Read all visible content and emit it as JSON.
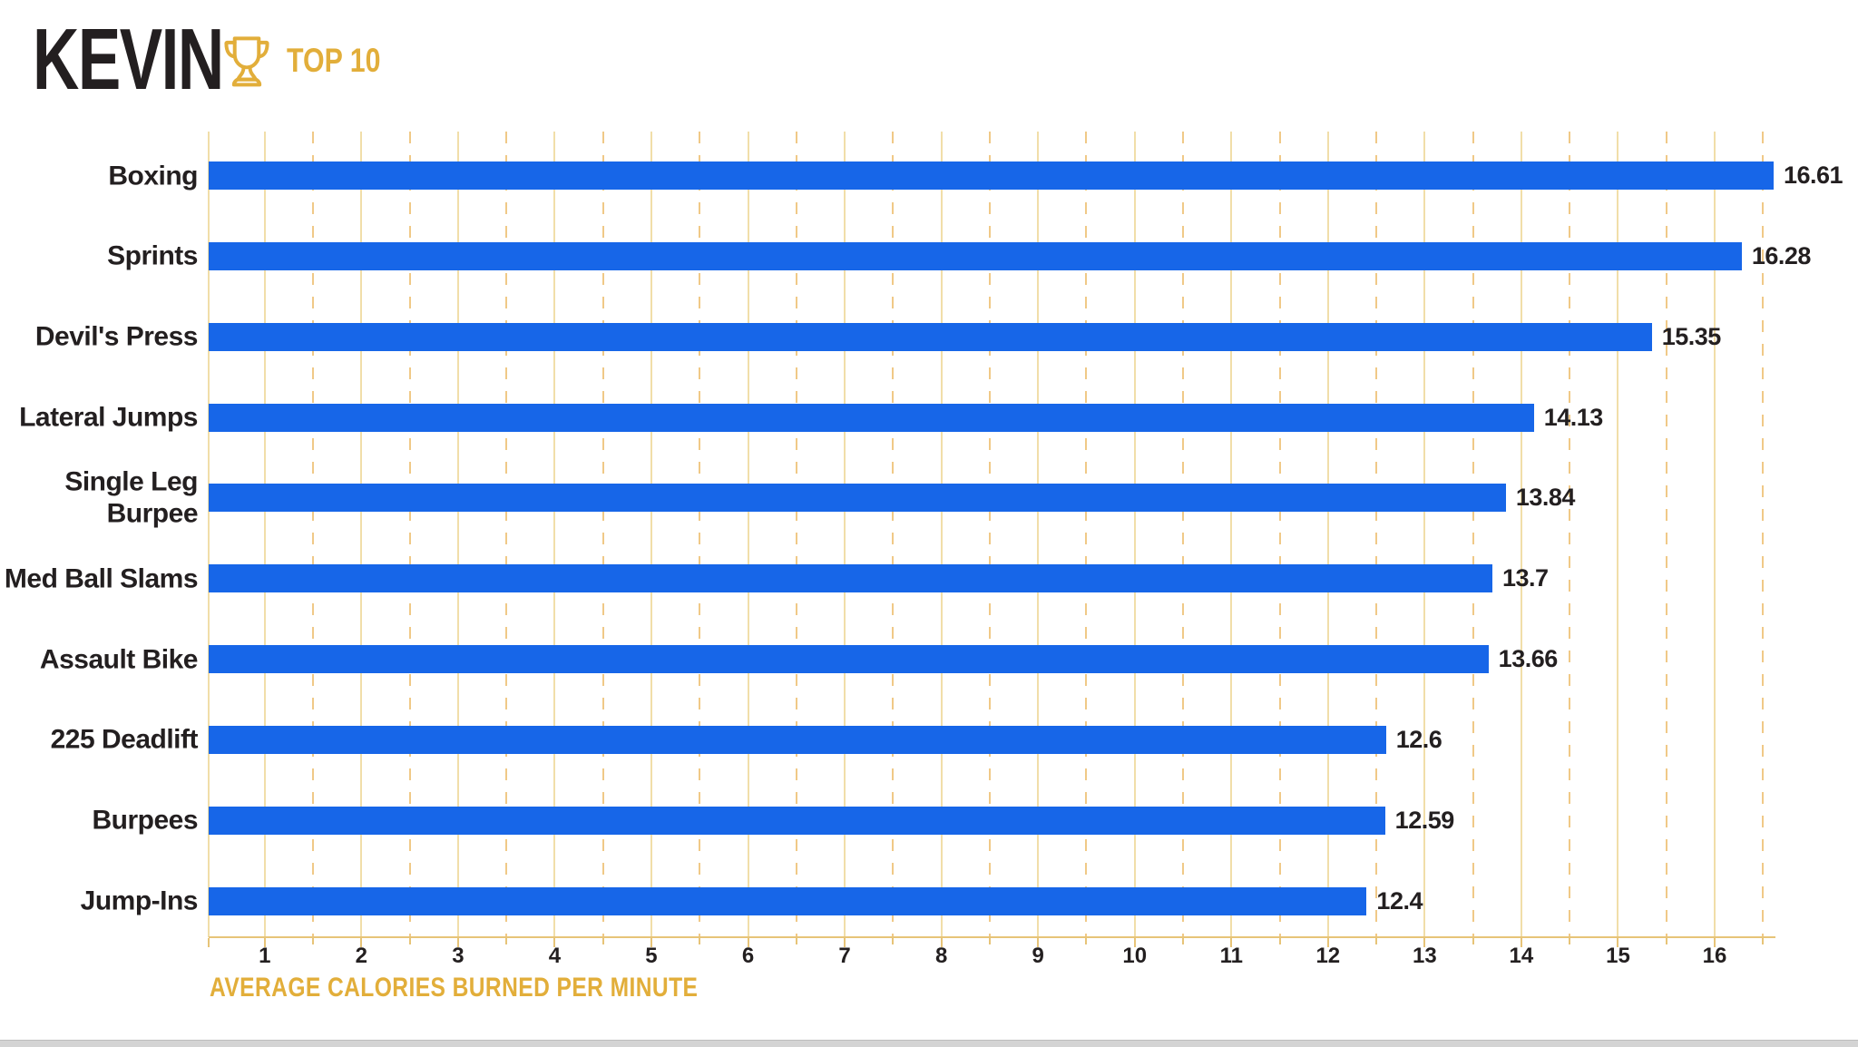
{
  "header": {
    "title": "KEVIN",
    "badge_label": "TOP 10",
    "trophy_icon": "trophy-icon"
  },
  "colors": {
    "bar_blue": "#1766E8",
    "brand_gold": "#E2AE3A",
    "grid_solid": "#F1DEA9",
    "grid_dashed": "#F0C987",
    "axis_gold": "#E7C478",
    "text_dark": "#231F20",
    "bottom_strip_gray": "#D4D4D4",
    "background": "#FFFFFF"
  },
  "chart_data": {
    "type": "bar",
    "orientation": "horizontal",
    "title": "KEVIN",
    "subtitle": "TOP 10",
    "xlabel": "AVERAGE CALORIES BURNED PER MINUTE",
    "ylabel": "",
    "categories": [
      "Boxing",
      "Sprints",
      "Devil's Press",
      "Lateral Jumps",
      "Single Leg Burpee",
      "Med Ball Slams",
      "Assault Bike",
      "225 Deadlift",
      "Burpees",
      "Jump-Ins"
    ],
    "values": [
      16.61,
      16.28,
      15.35,
      14.13,
      13.84,
      13.7,
      13.66,
      12.6,
      12.59,
      12.4
    ],
    "value_labels": [
      "16.61",
      "16.28",
      "15.35",
      "14.13",
      "13.84",
      "13.7",
      "13.66",
      "12.6",
      "12.59",
      "12.4"
    ],
    "x_ticks": [
      1,
      2,
      3,
      4,
      5,
      6,
      7,
      8,
      9,
      10,
      11,
      12,
      13,
      14,
      15,
      16
    ],
    "xlim": [
      0.42,
      16.61
    ],
    "grid": {
      "solid_lines": "at integer values and axis start",
      "dashed_lines": "at half-integer values",
      "direction": "vertical"
    },
    "legend": "none",
    "bar_color": "#1766E8"
  }
}
